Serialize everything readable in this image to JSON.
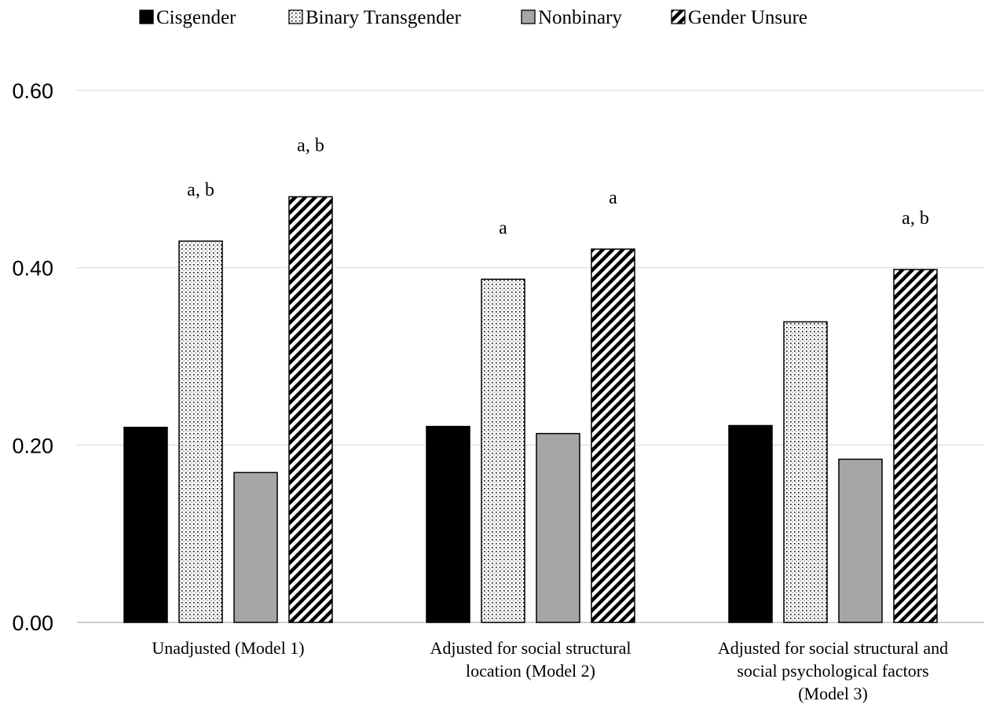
{
  "chart_data": {
    "type": "bar",
    "title": "",
    "xlabel": "",
    "ylabel": "",
    "ylim": [
      0,
      0.6
    ],
    "yticks": [
      "0.00",
      "0.20",
      "0.40",
      "0.60"
    ],
    "grid": true,
    "legend_position": "top",
    "categories": [
      [
        "Unadjusted (Model 1)"
      ],
      [
        "Adjusted for social structural",
        "location  (Model 2)"
      ],
      [
        "Adjusted for social structural and",
        "social psychological factors",
        "(Model 3)"
      ]
    ],
    "series": [
      {
        "name": "Cisgender",
        "pattern": "solid-black",
        "values": [
          0.22,
          0.221,
          0.222
        ],
        "annotations": [
          "",
          "",
          ""
        ]
      },
      {
        "name": "Binary Transgender",
        "pattern": "dots",
        "values": [
          0.43,
          0.387,
          0.339
        ],
        "annotations": [
          "a, b",
          "a",
          ""
        ]
      },
      {
        "name": "Nonbinary",
        "pattern": "solid-gray",
        "values": [
          0.169,
          0.213,
          0.184
        ],
        "annotations": [
          "",
          "",
          ""
        ]
      },
      {
        "name": "Gender Unsure",
        "pattern": "diagonal-stripes",
        "values": [
          0.48,
          0.421,
          0.398
        ],
        "annotations": [
          "a, b",
          "a",
          "a, b"
        ]
      }
    ],
    "colors": {
      "cisgender": "#000000",
      "nonbinary": "#a6a6a6",
      "gridline": "#d9d9d9",
      "axis": "#bfbfbf"
    }
  }
}
